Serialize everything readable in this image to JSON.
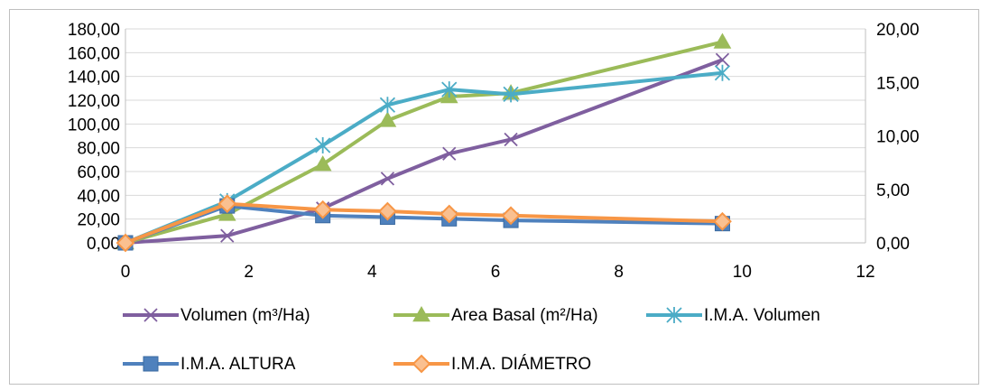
{
  "chart_data": {
    "type": "line",
    "title": "",
    "xlabel": "",
    "ylabel": "",
    "x_ticks": [
      "0",
      "2",
      "4",
      "6",
      "8",
      "10",
      "12"
    ],
    "xlim": [
      0,
      12
    ],
    "y_left_ticks": [
      "0,00",
      "20,00",
      "40,00",
      "60,00",
      "80,00",
      "100,00",
      "120,00",
      "140,00",
      "160,00",
      "180,00"
    ],
    "ylim_left": [
      0,
      180
    ],
    "y_right_ticks": [
      "0,00",
      "5,00",
      "10,00",
      "15,00",
      "20,00"
    ],
    "ylim_right": [
      0,
      20
    ],
    "grid": "horizontal",
    "legend": "bottom",
    "series": [
      {
        "name": "Volumen (m³/Ha)",
        "axis": "left",
        "color": "#7f5f9f",
        "marker": "x",
        "x": [
          0,
          1.65,
          3.2,
          4.25,
          5.25,
          6.25,
          9.68
        ],
        "y": [
          0,
          6,
          29,
          54,
          75,
          87,
          154
        ]
      },
      {
        "name": "Area Basal (m²/Ha)",
        "axis": "left",
        "color": "#9bbb59",
        "marker": "triangle",
        "x": [
          0,
          1.65,
          3.2,
          4.25,
          5.25,
          6.25,
          9.68
        ],
        "y": [
          0,
          24,
          66,
          103,
          123,
          126,
          169
        ]
      },
      {
        "name": "I.M.A. Volumen",
        "axis": "left",
        "color": "#4bacc6",
        "marker": "star",
        "x": [
          0,
          1.65,
          3.2,
          4.25,
          5.25,
          6.25,
          9.68
        ],
        "y": [
          0,
          35,
          82,
          116,
          129,
          125,
          143
        ]
      },
      {
        "name": "I.M.A.  ALTURA",
        "axis": "right",
        "color": "#4f81bd",
        "marker": "square",
        "x": [
          0,
          1.65,
          3.2,
          4.25,
          5.25,
          6.25,
          9.68
        ],
        "y": [
          0,
          3.45,
          2.55,
          2.4,
          2.25,
          2.1,
          1.8
        ]
      },
      {
        "name": "I.M.A. DIÁMETRO",
        "axis": "right",
        "color": "#f79646",
        "marker": "diamond",
        "x": [
          0,
          1.65,
          3.2,
          4.25,
          5.25,
          6.25,
          9.68
        ],
        "y": [
          0,
          3.65,
          3.1,
          2.95,
          2.7,
          2.55,
          2.0
        ]
      }
    ]
  }
}
